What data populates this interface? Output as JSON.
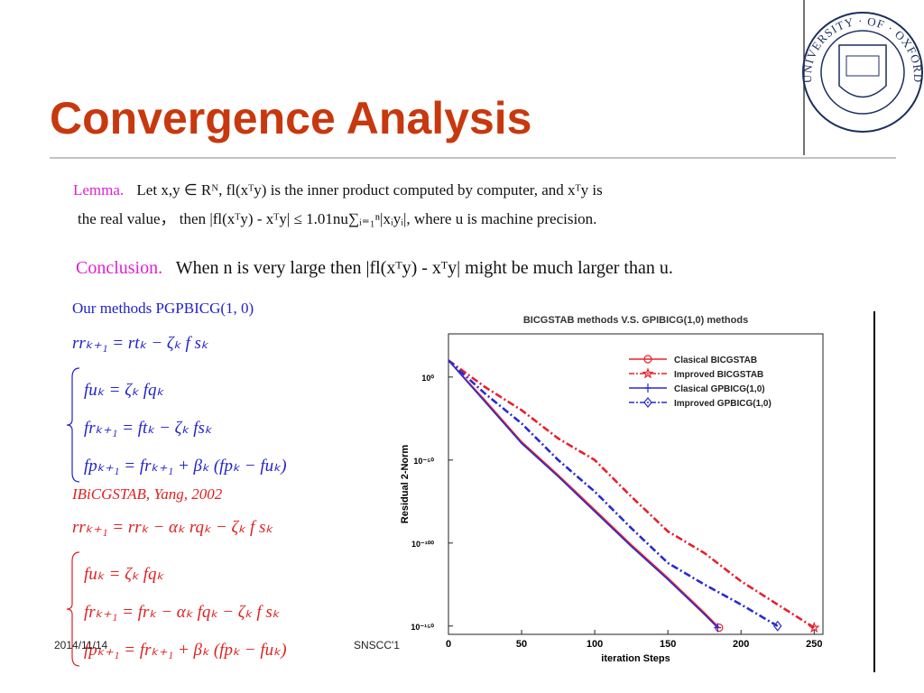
{
  "header": {
    "title": "Convergence Analysis",
    "logo_text": "UNIVERSITY · OF · OXFORD"
  },
  "lemma": {
    "label": "Lemma.",
    "line1": "Let x,y ∈ Rᴺ, fl(xᵀy) is the inner product computed by computer, and xᵀy is",
    "line2": "the real value， then |fl(xᵀy) - xᵀy| ≤ 1.01nu∑ᵢ₌₁ⁿ|xᵢyᵢ|, where u is machine precision."
  },
  "conclusion": {
    "label": "Conclusion.",
    "text": "When n is very large then |fl(xᵀy) - xᵀy| might be much larger than u."
  },
  "methods": {
    "ours_title": "Our methods PGPBICG(1, 0)",
    "ours_lines": [
      "rrₖ₊₁ = rtₖ − ζₖ f sₖ",
      "fuₖ = ζₖ fqₖ",
      "frₖ₊₁ = ftₖ − ζₖ fsₖ",
      "fpₖ₊₁ = frₖ₊₁ + βₖ (fpₖ − fuₖ)"
    ],
    "ref_title": "IBiCGSTAB,  Yang,   2002",
    "ref_lines": [
      "rrₖ₊₁ = rrₖ − αₖ rqₖ − ζₖ f sₖ",
      "fuₖ = ζₖ fqₖ",
      "frₖ₊₁ = frₖ − αₖ fqₖ − ζₖ f sₖ",
      "fpₖ₊₁ = frₖ₊₁ + βₖ (fpₖ − fuₖ)"
    ]
  },
  "footer": {
    "date": "2014/11/14",
    "event": "SNSCC'1"
  },
  "chart_data": {
    "type": "line",
    "title": "BICGSTAB methods V.S. GPIBICG(1,0) methods",
    "x_label": "iteration Steps",
    "y_label": "Residual 2-Norm",
    "log_scale": true,
    "legend": "upper right",
    "xlim": [
      0,
      256
    ],
    "xticks": [
      0,
      50,
      100,
      150,
      200,
      250
    ],
    "ylim": [
      1e-155,
      1e+26
    ],
    "yticks": [
      {
        "value": 1,
        "label": "10⁰"
      },
      {
        "value": 1e-50,
        "label": "10⁻⁵⁰"
      },
      {
        "value": 1e-100,
        "label": "10⁻¹⁰⁰"
      },
      {
        "value": 1e-150,
        "label": "10⁻¹⁵⁰"
      }
    ],
    "series": [
      {
        "name": "Clasical BICGSTAB",
        "color": "#e8202a",
        "dash": "solid",
        "marker": "circle",
        "x": [
          0,
          25,
          50,
          75,
          100,
          125,
          150,
          175,
          185
        ],
        "values": [
          10000000000.0,
          1e-14,
          1e-39,
          1e-59,
          1e-80,
          1e-101,
          1e-121,
          1e-142,
          1e-151
        ]
      },
      {
        "name": "Improved BICGSTAB",
        "color": "#e8202a",
        "dash": "dashdot",
        "marker": "star",
        "x": [
          0,
          25,
          50,
          75,
          100,
          125,
          150,
          175,
          200,
          225,
          250
        ],
        "values": [
          10000000000.0,
          1e-06,
          1e-20,
          1e-37,
          1e-50,
          1e-72,
          1e-93,
          1e-106,
          1e-123,
          1e-137,
          1e-151
        ]
      },
      {
        "name": "Clasical GPBICG(1,0)",
        "color": "#2a2ad0",
        "dash": "solid",
        "marker": "plus",
        "x": [
          0,
          25,
          50,
          75,
          100,
          125,
          150,
          175,
          184
        ],
        "values": [
          10000000000.0,
          1e-15,
          1e-40,
          1e-60,
          1e-81,
          1e-102,
          1e-122,
          1e-143,
          1e-151
        ]
      },
      {
        "name": "Improved GPBICG(1,0)",
        "color": "#2a2ad0",
        "dash": "dashdot",
        "marker": "diamond",
        "x": [
          0,
          25,
          50,
          75,
          100,
          125,
          150,
          175,
          200,
          225
        ],
        "values": [
          10000000000.0,
          1e-10,
          1e-28,
          1e-50,
          1e-69,
          1e-91,
          1e-112,
          1e-125,
          1e-137,
          1e-150
        ]
      }
    ]
  }
}
